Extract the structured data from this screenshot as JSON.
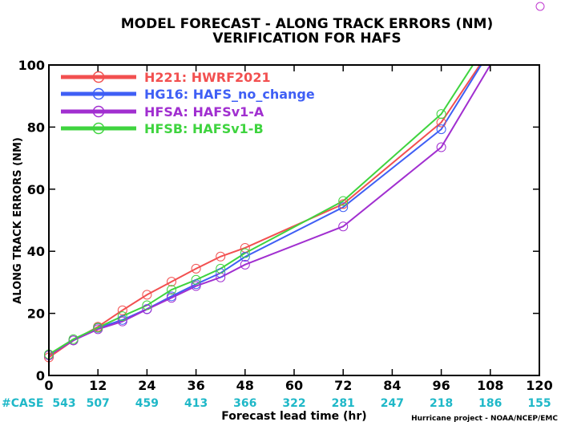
{
  "chart_data": {
    "type": "line",
    "title_line1": "MODEL FORECAST - ALONG TRACK ERRORS (NM)",
    "title_line2": "VERIFICATION FOR HAFS",
    "xlabel": "Forecast lead time (hr)",
    "ylabel": "ALONG TRACK ERRORS (NM)",
    "xlim": [
      0,
      120
    ],
    "ylim": [
      0,
      100
    ],
    "x_ticks": [
      0,
      12,
      24,
      36,
      48,
      60,
      72,
      84,
      96,
      108,
      120
    ],
    "y_ticks": [
      0,
      20,
      40,
      60,
      80,
      100
    ],
    "case_label": "#CASE",
    "case_counts": [
      543,
      507,
      459,
      413,
      366,
      322,
      281,
      247,
      218,
      186,
      155
    ],
    "credit": "Hurricane project - NOAA/NCEP/EMC",
    "legend_placement": "top-left",
    "grid": false,
    "series": [
      {
        "name": "H221: HWRF2021",
        "color": "#f25050",
        "x": [
          0,
          6,
          12,
          18,
          24,
          30,
          36,
          42,
          48,
          72,
          96,
          108
        ],
        "y": [
          5.8,
          11.3,
          15.7,
          21.0,
          26.0,
          30.2,
          34.4,
          38.3,
          41.1,
          55.2,
          81.5,
          105
        ],
        "markers": [
          0,
          6,
          12,
          18,
          24,
          30,
          36,
          42,
          48,
          72,
          96
        ]
      },
      {
        "name": "HG16: HAFS_no_change",
        "color": "#3f5ff5",
        "x": [
          0,
          6,
          12,
          18,
          24,
          30,
          36,
          42,
          48,
          72,
          96,
          106
        ],
        "y": [
          6.5,
          11.3,
          15.3,
          17.9,
          21.4,
          25.5,
          29.4,
          33.0,
          38.2,
          54.2,
          79.3,
          100.5
        ],
        "markers": [
          0,
          6,
          12,
          18,
          24,
          30,
          36,
          42,
          48,
          72,
          96
        ]
      },
      {
        "name": "HFSA: HAFSv1-A",
        "color": "#a12fd0",
        "x": [
          0,
          6,
          12,
          18,
          24,
          30,
          36,
          42,
          48,
          72,
          96,
          108
        ],
        "y": [
          6.5,
          11.3,
          14.9,
          17.4,
          21.3,
          25.0,
          28.8,
          31.6,
          35.7,
          48.0,
          73.5,
          100
        ],
        "markers": [
          0,
          6,
          12,
          18,
          24,
          30,
          36,
          42,
          48,
          72,
          96
        ]
      },
      {
        "name": "HFSB: HAFSv1-B",
        "color": "#3fd43f",
        "x": [
          0,
          6,
          12,
          18,
          24,
          30,
          36,
          42,
          48,
          72,
          96,
          104
        ],
        "y": [
          6.8,
          11.7,
          15.4,
          19.1,
          22.6,
          27.6,
          30.8,
          34.4,
          39.4,
          56.2,
          84.2,
          100.5
        ],
        "markers": [
          0,
          6,
          12,
          18,
          24,
          30,
          36,
          42,
          48,
          72,
          96
        ]
      }
    ]
  }
}
